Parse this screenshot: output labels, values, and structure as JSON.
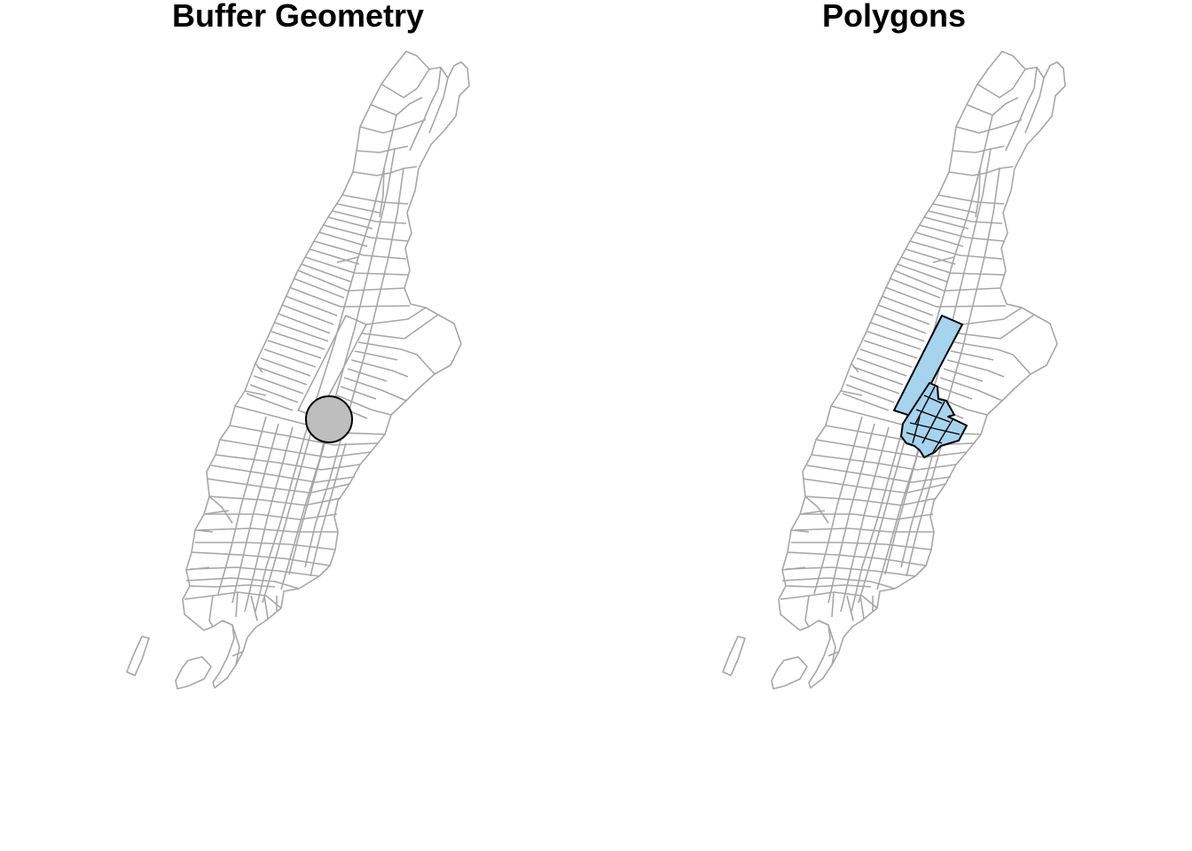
{
  "panels": [
    {
      "title": "Buffer Geometry",
      "layer": "buffer"
    },
    {
      "title": "Polygons",
      "layer": "polygons"
    }
  ],
  "colors": {
    "tract_outline": "#a6a6a6",
    "buffer_fill": "#bebebe",
    "buffer_stroke": "#000000",
    "selected_fill": "#a6d3ee",
    "selected_stroke": "#000000",
    "background": "#ffffff"
  }
}
